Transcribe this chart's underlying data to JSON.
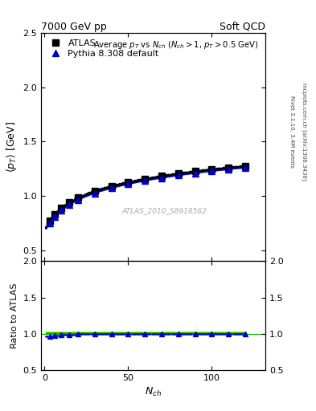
{
  "title_left": "7000 GeV pp",
  "title_right": "Soft QCD",
  "right_label_top": "Rivet 3.1.10, 3.4M events",
  "right_label_bot": "mcplots.cern.ch [arXiv:1306.3436]",
  "plot_title": "Average $p_T$ vs $N_{ch}$ ($N_{ch} > 1$, $p_T > 0.5$ GeV)",
  "xlabel": "$N_{ch}$",
  "ylabel": "$\\langle p_T \\rangle$ [GeV]",
  "ylabel_ratio": "Ratio to ATLAS",
  "watermark": "ATLAS_2010_S8918562",
  "legend_atlas": "ATLAS",
  "legend_pythia": "Pythia 8.308 default",
  "ylim_main": [
    0.4,
    2.5
  ],
  "ylim_ratio": [
    0.5,
    2.0
  ],
  "xlim": [
    -2,
    132
  ],
  "yticks_main": [
    0.5,
    1.0,
    1.5,
    2.0,
    2.5
  ],
  "yticks_ratio": [
    0.5,
    1.0,
    1.5,
    2.0
  ],
  "xticks": [
    0,
    50,
    100
  ],
  "atlas_color": "#000000",
  "pythia_color": "#0000cc",
  "band_color_yellow": "#ffff00",
  "band_color_green": "#00bb00"
}
